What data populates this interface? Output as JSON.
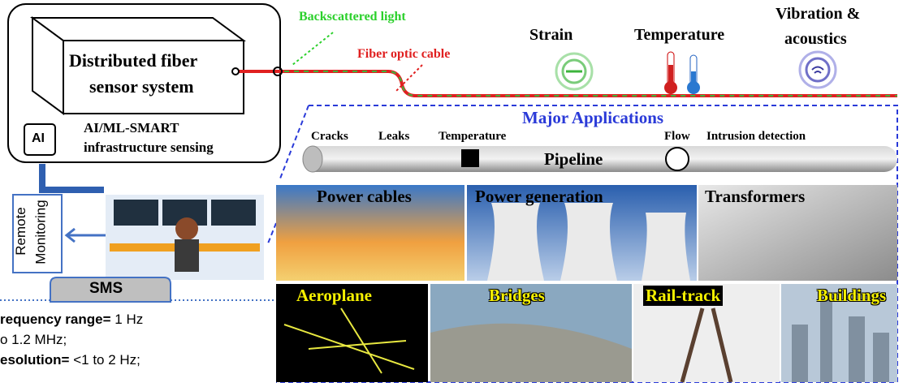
{
  "system": {
    "title_lines": [
      "Distributed fiber",
      "sensor system"
    ],
    "chip": "AI",
    "ai_lines": [
      "AI/ML-SMART",
      "infrastructure sensing"
    ]
  },
  "fiber": {
    "backscattered": "Backscattered light",
    "cable": "Fiber optic cable"
  },
  "measurands": [
    {
      "lines": [
        "Strain"
      ]
    },
    {
      "lines": [
        "Temperature"
      ]
    },
    {
      "lines": [
        "Vibration &",
        "acoustics"
      ]
    }
  ],
  "applications": {
    "title": "Major Applications",
    "pipeline": {
      "label": "Pipeline",
      "items": [
        "Cracks",
        "Leaks",
        "Temperature",
        "Flow",
        "Intrusion detection"
      ]
    },
    "tiles": [
      "Power cables",
      "Power generation",
      "Transformers",
      "Aeroplane",
      "Bridges",
      "Rail-track",
      "Buildings"
    ]
  },
  "monitoring": {
    "lines": [
      "Remote",
      "Monitoring"
    ],
    "sms": "SMS",
    "specs": [
      [
        "requency range=",
        "1 Hz"
      ],
      [
        "o 1.2 MHz;"
      ],
      [
        "esolution=",
        "<1 to 2 Hz;"
      ]
    ]
  }
}
